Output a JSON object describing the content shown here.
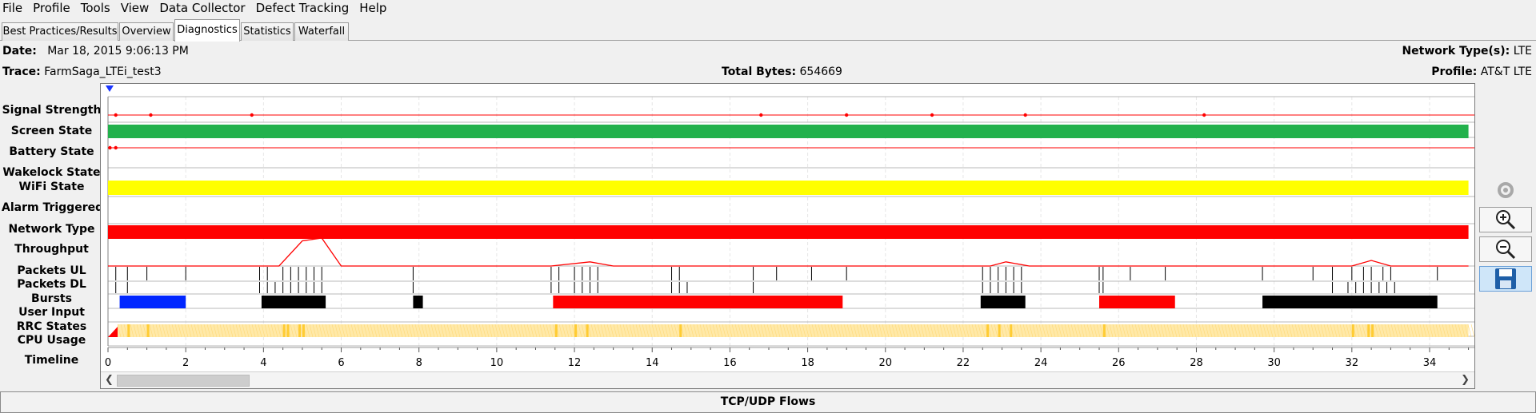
{
  "menu": [
    "File",
    "Profile",
    "Tools",
    "View",
    "Data Collector",
    "Defect Tracking",
    "Help"
  ],
  "tabs": [
    {
      "label": "Best Practices/Results",
      "active": false
    },
    {
      "label": "Overview",
      "active": false
    },
    {
      "label": "Diagnostics",
      "active": true
    },
    {
      "label": "Statistics",
      "active": false
    },
    {
      "label": "Waterfall",
      "active": false
    }
  ],
  "header": {
    "date_label": "Date:",
    "date_value": "Mar 18, 2015 9:06:13 PM",
    "trace_label": "Trace:",
    "trace_value": "FarmSaga_LTEi_test3",
    "total_bytes_label": "Total Bytes:",
    "total_bytes_value": "654669",
    "network_types_label": "Network Type(s):",
    "network_types_value": "LTE",
    "profile_label": "Profile:",
    "profile_value": "AT&T LTE"
  },
  "rows": [
    {
      "key": "signal",
      "label": "Signal Strength"
    },
    {
      "key": "screen",
      "label": "Screen State"
    },
    {
      "key": "battery",
      "label": "Battery State"
    },
    {
      "key": "wakelock",
      "label": "Wakelock State"
    },
    {
      "key": "wifi",
      "label": "WiFi State"
    },
    {
      "key": "alarm",
      "label": "Alarm Triggered"
    },
    {
      "key": "network",
      "label": "Network Type"
    },
    {
      "key": "throughput",
      "label": "Throughput"
    },
    {
      "key": "packets_ul",
      "label": "Packets UL"
    },
    {
      "key": "packets_dl",
      "label": "Packets DL"
    },
    {
      "key": "bursts",
      "label": "Bursts"
    },
    {
      "key": "user_input",
      "label": "User Input"
    },
    {
      "key": "rrc",
      "label": "RRC States"
    },
    {
      "key": "cpu",
      "label": "CPU Usage"
    },
    {
      "key": "timeline",
      "label": "Timeline"
    }
  ],
  "chart_data": {
    "type": "timeline",
    "xlim": [
      0,
      35
    ],
    "x_ticks": [
      0,
      2,
      4,
      6,
      8,
      10,
      12,
      14,
      16,
      18,
      20,
      22,
      24,
      26,
      28,
      30,
      32,
      34
    ],
    "colors": {
      "screen": "#22b14c",
      "wifi": "#ffff00",
      "network": "#ff0000",
      "signal": "#ff0000",
      "battery": "#ff0000",
      "throughput": "#ff0000",
      "burst_blue": "#0026ff",
      "burst_black": "#000000",
      "burst_red": "#ff0000",
      "rrc_fill": "#ffe9a8",
      "rrc_mark": "#ffcc33",
      "packet": "#000000"
    },
    "signal_strength_points": [
      0.2,
      1.1,
      3.7,
      16.8,
      19.0,
      21.2,
      23.6,
      28.2
    ],
    "battery_points": [
      0.05,
      0.2
    ],
    "screen_state": [
      [
        0,
        35
      ]
    ],
    "wifi_state": [
      [
        0,
        35
      ]
    ],
    "network_type": [
      [
        0,
        35
      ]
    ],
    "throughput": [
      [
        0,
        0
      ],
      [
        4.4,
        0
      ],
      [
        5.0,
        0.9
      ],
      [
        5.5,
        1.0
      ],
      [
        6.0,
        0
      ],
      [
        11.4,
        0
      ],
      [
        12.4,
        0.15
      ],
      [
        13.0,
        0
      ],
      [
        22.7,
        0
      ],
      [
        23.1,
        0.15
      ],
      [
        23.7,
        0
      ],
      [
        32.0,
        0
      ],
      [
        32.5,
        0.2
      ],
      [
        33.0,
        0
      ],
      [
        35,
        0
      ]
    ],
    "packets_ul": [
      0.2,
      0.5,
      1.0,
      2.0,
      3.9,
      4.1,
      4.5,
      4.7,
      4.9,
      5.1,
      5.3,
      5.5,
      7.85,
      11.4,
      11.6,
      12.0,
      12.2,
      12.4,
      12.6,
      14.5,
      14.7,
      16.6,
      17.2,
      18.1,
      19.0,
      22.5,
      22.7,
      22.9,
      23.1,
      23.3,
      23.5,
      25.5,
      25.6,
      26.3,
      27.2,
      29.7,
      31.0,
      31.5,
      32.0,
      32.3,
      32.5,
      32.8,
      33.0,
      34.2
    ],
    "packets_dl": [
      0.2,
      0.5,
      3.9,
      4.1,
      4.3,
      4.5,
      4.7,
      4.9,
      5.1,
      5.3,
      5.5,
      7.85,
      11.4,
      11.6,
      12.0,
      12.2,
      12.4,
      12.6,
      14.5,
      14.7,
      14.9,
      16.6,
      22.5,
      22.7,
      22.9,
      23.1,
      23.3,
      23.5,
      25.5,
      25.6,
      31.5,
      31.9,
      32.1,
      32.3,
      32.5,
      32.7,
      32.9,
      33.1
    ],
    "bursts": [
      {
        "start": 0.3,
        "end": 2.0,
        "color": "blue"
      },
      {
        "start": 3.95,
        "end": 5.6,
        "color": "black"
      },
      {
        "start": 7.85,
        "end": 8.1,
        "color": "black"
      },
      {
        "start": 11.45,
        "end": 18.9,
        "color": "red"
      },
      {
        "start": 22.45,
        "end": 23.6,
        "color": "black"
      },
      {
        "start": 25.5,
        "end": 27.45,
        "color": "red"
      },
      {
        "start": 29.7,
        "end": 34.2,
        "color": "black"
      }
    ],
    "rrc_states": {
      "start": 0.0,
      "end": 35,
      "marks": [
        0.5,
        1.0,
        4.5,
        4.6,
        4.9,
        5.0,
        11.5,
        12.0,
        12.3,
        14.7,
        22.6,
        22.9,
        23.2,
        25.6,
        32.0,
        32.4,
        32.5
      ]
    }
  }
}
